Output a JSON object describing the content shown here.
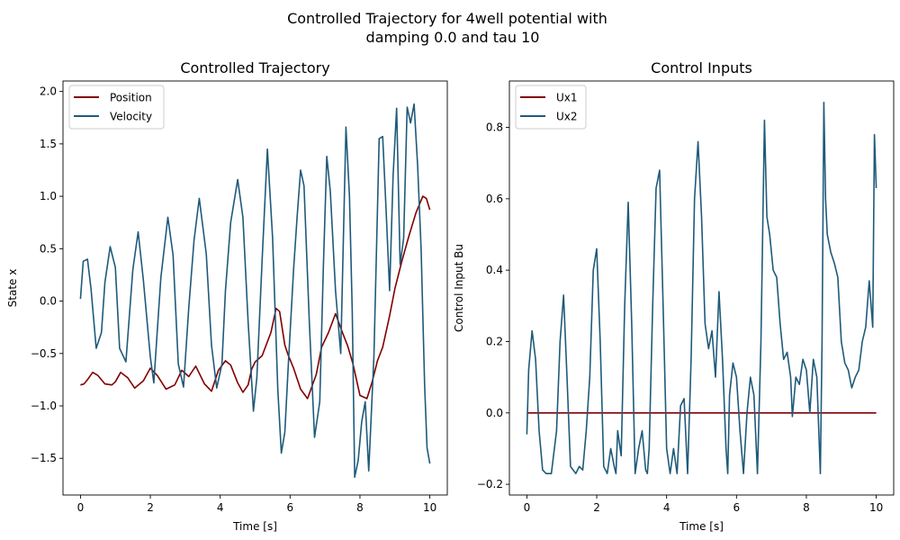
{
  "figure": {
    "suptitle_line1": "Controlled Trajectory for 4well potential with",
    "suptitle_line2": "damping 0.0 and tau 10"
  },
  "colors": {
    "position": "#800000",
    "velocity": "#1f5a7a",
    "ux1": "#800000",
    "ux2": "#1f5a7a",
    "axis": "#000000"
  },
  "chart_data": [
    {
      "type": "line",
      "title": "Controlled Trajectory",
      "xlabel": "Time [s]",
      "ylabel": "State x",
      "xlim": [
        -0.5,
        10.5
      ],
      "ylim": [
        -1.85,
        2.1
      ],
      "xticks": [
        0,
        2,
        4,
        6,
        8,
        10
      ],
      "xtick_labels": [
        "0",
        "2",
        "4",
        "6",
        "8",
        "10"
      ],
      "yticks": [
        -1.5,
        -1.0,
        -0.5,
        0.0,
        0.5,
        1.0,
        1.5,
        2.0
      ],
      "ytick_labels": [
        "−1.5",
        "−1.0",
        "−0.5",
        "0.0",
        "0.5",
        "1.0",
        "1.5",
        "2.0"
      ],
      "legend_position": "top-left",
      "series": [
        {
          "name": "Position",
          "x": [
            0,
            0.1,
            0.2,
            0.35,
            0.5,
            0.7,
            0.9,
            1.0,
            1.15,
            1.35,
            1.55,
            1.8,
            2.0,
            2.2,
            2.45,
            2.7,
            2.9,
            3.1,
            3.3,
            3.55,
            3.75,
            3.95,
            4.15,
            4.3,
            4.5,
            4.65,
            4.8,
            4.9,
            5.0,
            5.2,
            5.45,
            5.6,
            5.7,
            5.85,
            5.95,
            6.1,
            6.3,
            6.5,
            6.75,
            6.9,
            7.1,
            7.3,
            7.5,
            7.65,
            7.8,
            8.0,
            8.2,
            8.35,
            8.5,
            8.65,
            8.85,
            9.0,
            9.2,
            9.4,
            9.6,
            9.8,
            9.9,
            10.0
          ],
          "values": [
            -0.8,
            -0.79,
            -0.75,
            -0.68,
            -0.71,
            -0.79,
            -0.8,
            -0.77,
            -0.68,
            -0.73,
            -0.83,
            -0.76,
            -0.64,
            -0.71,
            -0.84,
            -0.8,
            -0.66,
            -0.72,
            -0.62,
            -0.79,
            -0.86,
            -0.66,
            -0.57,
            -0.61,
            -0.78,
            -0.87,
            -0.8,
            -0.65,
            -0.58,
            -0.52,
            -0.3,
            -0.07,
            -0.1,
            -0.42,
            -0.52,
            -0.64,
            -0.84,
            -0.93,
            -0.7,
            -0.44,
            -0.3,
            -0.12,
            -0.3,
            -0.43,
            -0.6,
            -0.9,
            -0.93,
            -0.77,
            -0.57,
            -0.44,
            -0.14,
            0.12,
            0.38,
            0.62,
            0.84,
            1.0,
            0.98,
            0.87
          ]
        },
        {
          "name": "Velocity",
          "x": [
            0,
            0.08,
            0.2,
            0.3,
            0.45,
            0.6,
            0.7,
            0.85,
            1.0,
            1.12,
            1.3,
            1.5,
            1.65,
            1.8,
            2.0,
            2.1,
            2.3,
            2.5,
            2.65,
            2.8,
            2.95,
            3.1,
            3.25,
            3.4,
            3.6,
            3.75,
            3.9,
            4.05,
            4.15,
            4.3,
            4.5,
            4.65,
            4.8,
            4.95,
            5.05,
            5.2,
            5.35,
            5.5,
            5.65,
            5.75,
            5.85,
            5.95,
            6.1,
            6.2,
            6.3,
            6.4,
            6.55,
            6.7,
            6.85,
            6.95,
            7.05,
            7.15,
            7.3,
            7.45,
            7.6,
            7.7,
            7.78,
            7.85,
            7.95,
            8.05,
            8.15,
            8.25,
            8.4,
            8.55,
            8.65,
            8.75,
            8.85,
            8.95,
            9.05,
            9.15,
            9.25,
            9.35,
            9.45,
            9.55,
            9.65,
            9.75,
            9.85,
            9.92,
            10.0
          ],
          "values": [
            0.02,
            0.38,
            0.4,
            0.12,
            -0.45,
            -0.3,
            0.18,
            0.52,
            0.32,
            -0.45,
            -0.58,
            0.3,
            0.66,
            0.2,
            -0.53,
            -0.78,
            0.22,
            0.8,
            0.44,
            -0.6,
            -0.82,
            -0.07,
            0.58,
            0.98,
            0.45,
            -0.42,
            -0.83,
            -0.6,
            0.1,
            0.75,
            1.16,
            0.8,
            -0.2,
            -1.05,
            -0.73,
            0.4,
            1.45,
            0.6,
            -0.85,
            -1.45,
            -1.25,
            -0.6,
            0.3,
            0.8,
            1.25,
            1.1,
            -0.2,
            -1.3,
            -0.96,
            0.3,
            1.38,
            1.05,
            0.1,
            -0.5,
            1.66,
            1.0,
            -0.1,
            -1.68,
            -1.52,
            -1.15,
            -0.96,
            -1.62,
            -0.52,
            1.55,
            1.57,
            0.85,
            0.1,
            1.2,
            1.84,
            0.35,
            0.6,
            1.85,
            1.7,
            1.88,
            1.3,
            0.5,
            -0.8,
            -1.4,
            -1.55
          ]
        }
      ]
    },
    {
      "type": "line",
      "title": "Control Inputs",
      "xlabel": "Time [s]",
      "ylabel": "Control Input Bu",
      "xlim": [
        -0.5,
        10.5
      ],
      "ylim": [
        -0.23,
        0.93
      ],
      "xticks": [
        0,
        2,
        4,
        6,
        8,
        10
      ],
      "xtick_labels": [
        "0",
        "2",
        "4",
        "6",
        "8",
        "10"
      ],
      "yticks": [
        -0.2,
        0.0,
        0.2,
        0.4,
        0.6,
        0.8
      ],
      "ytick_labels": [
        "−0.2",
        "0.0",
        "0.2",
        "0.4",
        "0.6",
        "0.8"
      ],
      "legend_position": "top-left",
      "series": [
        {
          "name": "Ux1",
          "x": [
            0,
            10
          ],
          "values": [
            0.0,
            0.0
          ]
        },
        {
          "name": "Ux2",
          "x": [
            0,
            0.05,
            0.15,
            0.25,
            0.35,
            0.45,
            0.55,
            0.7,
            0.85,
            0.95,
            1.05,
            1.15,
            1.25,
            1.4,
            1.5,
            1.6,
            1.7,
            1.8,
            1.9,
            2.0,
            2.1,
            2.2,
            2.3,
            2.4,
            2.5,
            2.55,
            2.6,
            2.7,
            2.8,
            2.9,
            3.0,
            3.1,
            3.2,
            3.3,
            3.4,
            3.45,
            3.5,
            3.6,
            3.7,
            3.8,
            3.9,
            4.0,
            4.1,
            4.2,
            4.3,
            4.4,
            4.5,
            4.6,
            4.7,
            4.8,
            4.9,
            5.0,
            5.1,
            5.2,
            5.3,
            5.4,
            5.5,
            5.6,
            5.7,
            5.75,
            5.8,
            5.9,
            6.0,
            6.1,
            6.2,
            6.3,
            6.4,
            6.5,
            6.6,
            6.7,
            6.8,
            6.87,
            6.95,
            7.05,
            7.15,
            7.25,
            7.35,
            7.45,
            7.55,
            7.6,
            7.7,
            7.8,
            7.9,
            8.0,
            8.1,
            8.2,
            8.3,
            8.4,
            8.45,
            8.5,
            8.55,
            8.6,
            8.7,
            8.8,
            8.9,
            9.0,
            9.1,
            9.2,
            9.3,
            9.4,
            9.5,
            9.6,
            9.7,
            9.8,
            9.9,
            9.95,
            10.0
          ],
          "values": [
            -0.06,
            0.12,
            0.23,
            0.15,
            -0.05,
            -0.16,
            -0.17,
            -0.17,
            -0.05,
            0.2,
            0.33,
            0.1,
            -0.15,
            -0.17,
            -0.15,
            -0.16,
            -0.05,
            0.1,
            0.4,
            0.46,
            0.2,
            -0.15,
            -0.17,
            -0.1,
            -0.15,
            -0.17,
            -0.05,
            -0.12,
            0.3,
            0.59,
            0.25,
            -0.17,
            -0.1,
            -0.05,
            -0.16,
            -0.17,
            -0.1,
            0.3,
            0.63,
            0.68,
            0.3,
            -0.1,
            -0.17,
            -0.1,
            -0.17,
            0.02,
            0.04,
            -0.17,
            0.15,
            0.6,
            0.76,
            0.55,
            0.25,
            0.18,
            0.23,
            0.1,
            0.34,
            0.15,
            -0.1,
            -0.17,
            0.05,
            0.14,
            0.1,
            -0.05,
            -0.17,
            0.0,
            0.1,
            0.05,
            -0.17,
            0.2,
            0.82,
            0.55,
            0.5,
            0.4,
            0.38,
            0.25,
            0.15,
            0.17,
            0.1,
            -0.01,
            0.1,
            0.08,
            0.15,
            0.12,
            0.0,
            0.15,
            0.1,
            -0.17,
            0.2,
            0.87,
            0.6,
            0.5,
            0.45,
            0.42,
            0.38,
            0.2,
            0.14,
            0.12,
            0.07,
            0.1,
            0.12,
            0.2,
            0.24,
            0.37,
            0.24,
            0.78,
            0.63
          ]
        }
      ]
    }
  ]
}
